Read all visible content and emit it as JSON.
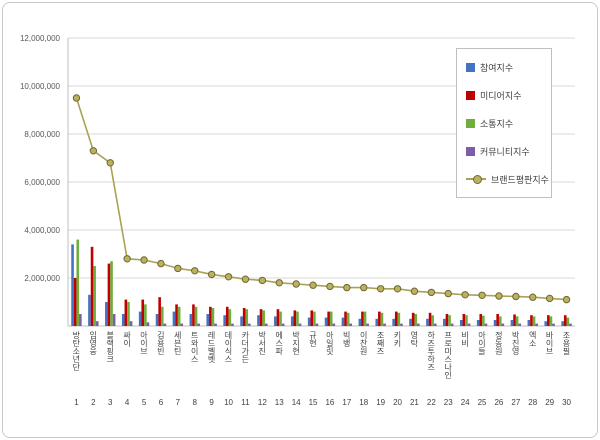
{
  "chart_data": {
    "type": "bar",
    "title": "",
    "y_axis": {
      "min": 0,
      "max": 12000000,
      "step": 2000000
    },
    "categories": [
      "방탄소년단",
      "임영웅",
      "블랙핑크",
      "싸이",
      "아이브",
      "김용빈",
      "세븐틴",
      "트와이스",
      "레드벨벳",
      "데이식스",
      "카더가든",
      "박서진",
      "에스파",
      "박지현",
      "규현",
      "아일릿",
      "빅뱅",
      "이찬원",
      "조째즈",
      "키키",
      "영탁",
      "하즈투하즈",
      "프로미스나인",
      "비비",
      "아이들",
      "정동원",
      "박진영",
      "엑소",
      "바이브",
      "조용필"
    ],
    "ranks": [
      1,
      2,
      3,
      4,
      5,
      6,
      7,
      8,
      9,
      10,
      11,
      12,
      13,
      14,
      15,
      16,
      17,
      18,
      19,
      20,
      21,
      22,
      23,
      24,
      25,
      26,
      27,
      28,
      29,
      30
    ],
    "series": [
      {
        "name": "참여지수",
        "type": "bar",
        "color": "#4472C4",
        "values": [
          3400000,
          1300000,
          1000000,
          500000,
          600000,
          500000,
          600000,
          500000,
          500000,
          450000,
          400000,
          450000,
          400000,
          400000,
          350000,
          350000,
          350000,
          300000,
          300000,
          300000,
          300000,
          300000,
          300000,
          250000,
          250000,
          250000,
          250000,
          250000,
          200000,
          200000
        ]
      },
      {
        "name": "미디어지수",
        "type": "bar",
        "color": "#C00000",
        "values": [
          2000000,
          3300000,
          2600000,
          1100000,
          1100000,
          1200000,
          900000,
          900000,
          800000,
          800000,
          750000,
          700000,
          700000,
          650000,
          650000,
          600000,
          600000,
          600000,
          600000,
          600000,
          550000,
          550000,
          500000,
          500000,
          500000,
          500000,
          480000,
          450000,
          450000,
          450000
        ]
      },
      {
        "name": "소통지수",
        "type": "bar",
        "color": "#6FAE3C",
        "values": [
          3600000,
          2500000,
          2700000,
          1000000,
          900000,
          800000,
          800000,
          800000,
          750000,
          700000,
          700000,
          650000,
          600000,
          600000,
          600000,
          600000,
          550000,
          600000,
          550000,
          550000,
          500000,
          450000,
          450000,
          450000,
          430000,
          400000,
          400000,
          400000,
          400000,
          350000
        ]
      },
      {
        "name": "커뮤니티지수",
        "type": "bar",
        "color": "#7B5EA7",
        "values": [
          500000,
          200000,
          500000,
          200000,
          150000,
          100000,
          100000,
          100000,
          100000,
          100000,
          100000,
          100000,
          100000,
          100000,
          100000,
          100000,
          100000,
          100000,
          100000,
          100000,
          100000,
          100000,
          100000,
          100000,
          100000,
          100000,
          100000,
          100000,
          100000,
          100000
        ]
      },
      {
        "name": "브랜드평판지수",
        "type": "line",
        "color": "#A8A256",
        "marker_fill": "#BBB25F",
        "marker_stroke": "#6E6832",
        "values": [
          9500000,
          7300000,
          6800000,
          2800000,
          2750000,
          2600000,
          2400000,
          2300000,
          2150000,
          2050000,
          1950000,
          1900000,
          1800000,
          1750000,
          1700000,
          1650000,
          1600000,
          1600000,
          1550000,
          1550000,
          1450000,
          1400000,
          1350000,
          1300000,
          1280000,
          1250000,
          1230000,
          1200000,
          1150000,
          1100000
        ]
      }
    ],
    "grid_color": "#d9d9d9",
    "axis_color": "#bfbfbf",
    "legend_position": "right-top"
  }
}
